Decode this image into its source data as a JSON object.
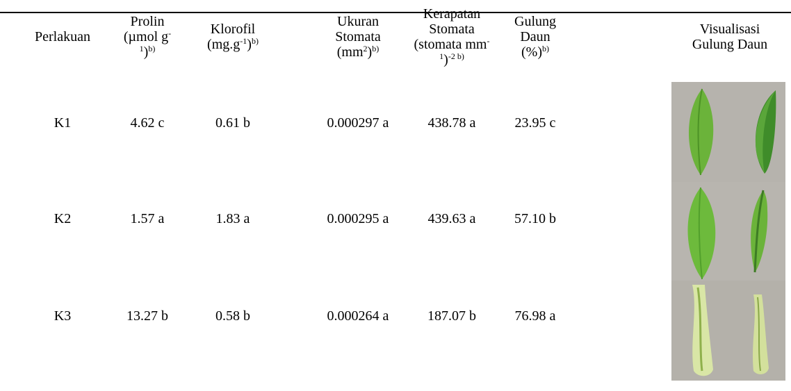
{
  "table": {
    "header": [
      [
        "Perlakuan"
      ],
      [
        "Prolin (µmol g",
        "-1",
        ")",
        "b)"
      ],
      [
        "Klorofil (mg.g",
        "-1",
        ")",
        "b)"
      ],
      [
        "Ukuran Stomata (mm",
        "2",
        ")",
        "b)"
      ],
      [
        "Kerapatan Stomata (stomata mm",
        "-1",
        ")",
        "-2 b)"
      ],
      [
        "Gulung Daun (%)",
        "b)"
      ],
      [
        "Visualisasi Gulung Daun"
      ]
    ],
    "rows": [
      [
        "K1",
        "4.62 c",
        "0.61 b",
        "0.000297 a",
        "438.78 a",
        "23.95 c"
      ],
      [
        "K2",
        "1.57 a",
        "1.83 a",
        "0.000295 a",
        "439.63 a",
        "57.10 b"
      ],
      [
        "K3",
        "13.27 b",
        "0.58 b",
        "0.000264 a",
        "187.07 b",
        "76.98 a"
      ]
    ]
  }
}
